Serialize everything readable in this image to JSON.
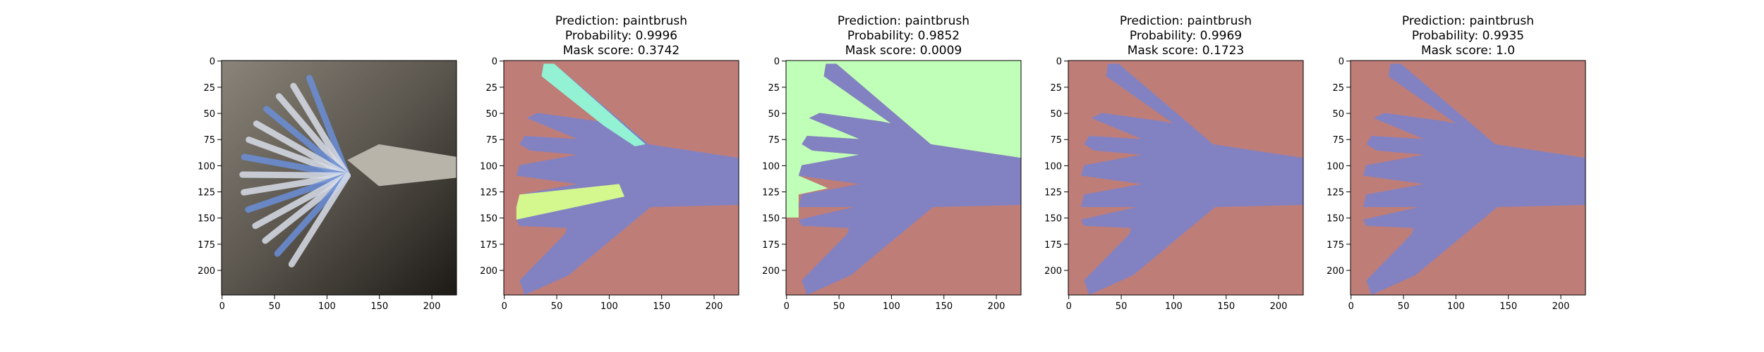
{
  "chart_data": [
    {
      "type": "image",
      "xlim": [
        -0.5,
        223.5
      ],
      "ylim": [
        223.5,
        -0.5
      ],
      "xticks": [
        0,
        50,
        100,
        150,
        200
      ],
      "yticks": [
        0,
        25,
        50,
        75,
        100,
        125,
        150,
        175,
        200
      ]
    },
    {
      "type": "image",
      "title": [
        "Prediction: paintbrush",
        "Probability: 0.9996",
        "Mask score: 0.3742"
      ],
      "xlim": [
        -0.5,
        223.5
      ],
      "ylim": [
        223.5,
        -0.5
      ],
      "xticks": [
        0,
        50,
        100,
        150,
        200
      ],
      "yticks": [
        0,
        25,
        50,
        75,
        100,
        125,
        150,
        175,
        200
      ]
    },
    {
      "type": "image",
      "title": [
        "Prediction: paintbrush",
        "Probability: 0.9852",
        "Mask score: 0.0009"
      ],
      "xlim": [
        -0.5,
        223.5
      ],
      "ylim": [
        223.5,
        -0.5
      ],
      "xticks": [
        0,
        50,
        100,
        150,
        200
      ],
      "yticks": [
        0,
        25,
        50,
        75,
        100,
        125,
        150,
        175,
        200
      ]
    },
    {
      "type": "image",
      "title": [
        "Prediction: paintbrush",
        "Probability: 0.9969",
        "Mask score: 0.1723"
      ],
      "xlim": [
        -0.5,
        223.5
      ],
      "ylim": [
        223.5,
        -0.5
      ],
      "xticks": [
        0,
        50,
        100,
        150,
        200
      ],
      "yticks": [
        0,
        25,
        50,
        75,
        100,
        125,
        150,
        175,
        200
      ]
    },
    {
      "type": "image",
      "title": [
        "Prediction: paintbrush",
        "Probability: 0.9935",
        "Mask score: 1.0"
      ],
      "xlim": [
        -0.5,
        223.5
      ],
      "ylim": [
        223.5,
        -0.5
      ],
      "xticks": [
        0,
        50,
        100,
        150,
        200
      ],
      "yticks": [
        0,
        25,
        50,
        75,
        100,
        125,
        150,
        175,
        200
      ]
    }
  ]
}
